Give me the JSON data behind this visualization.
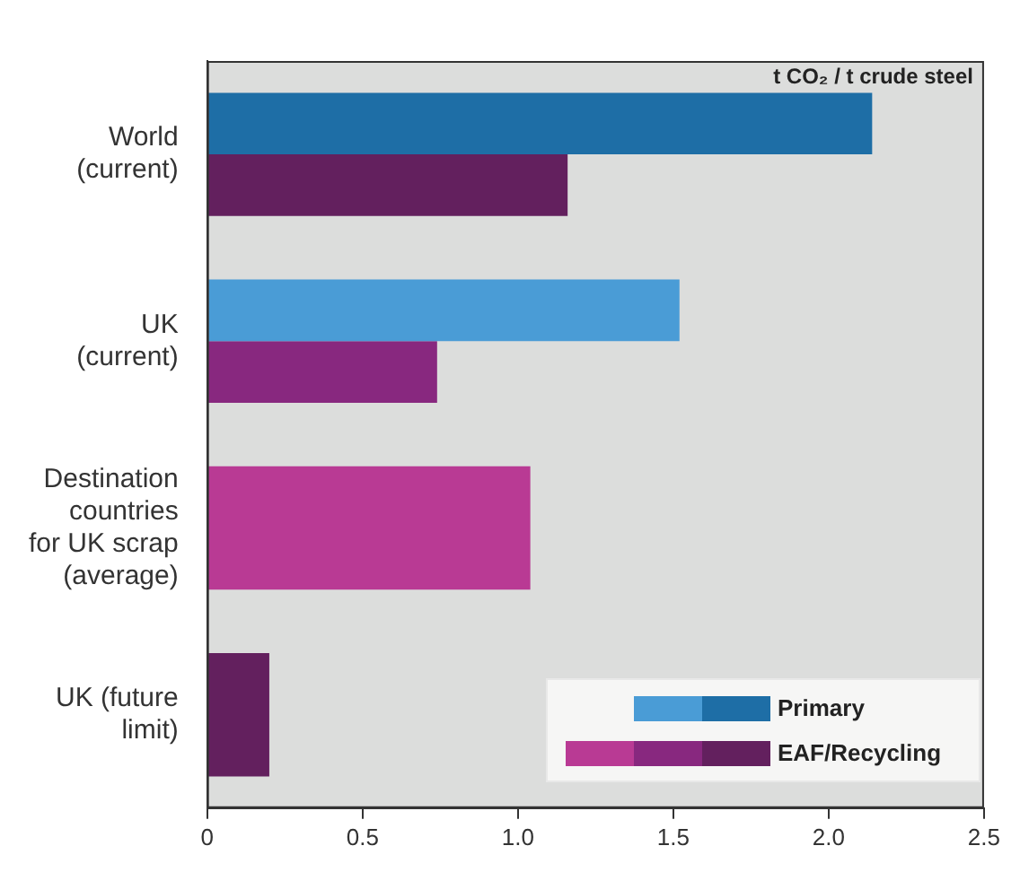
{
  "chart_data": {
    "type": "bar",
    "orientation": "horizontal",
    "xlabel": "t CO₂ / t crude steel",
    "categories": [
      "World\n(current)",
      "UK\n(current)",
      "Destination\ncountries\nfor UK scrap\n(average)",
      "UK (future\nlimit)"
    ],
    "series": [
      {
        "name": "Primary",
        "colors": [
          "#1e6ea6",
          "#4a9cd6",
          null,
          null
        ],
        "values": [
          2.14,
          1.52,
          null,
          null
        ]
      },
      {
        "name": "EAF/Recycling",
        "colors": [
          "#63205e",
          "#88287f",
          "#b93a94",
          "#63205e"
        ],
        "values": [
          1.16,
          0.74,
          1.04,
          0.2
        ]
      }
    ],
    "xlim": [
      0,
      2.5
    ],
    "xticks": [
      0,
      0.5,
      {
        "value": 1,
        "label": "1.0"
      },
      1.5,
      {
        "value": 2,
        "label": "2.0"
      },
      2.5
    ],
    "grid": false,
    "legend": "bottom right"
  }
}
